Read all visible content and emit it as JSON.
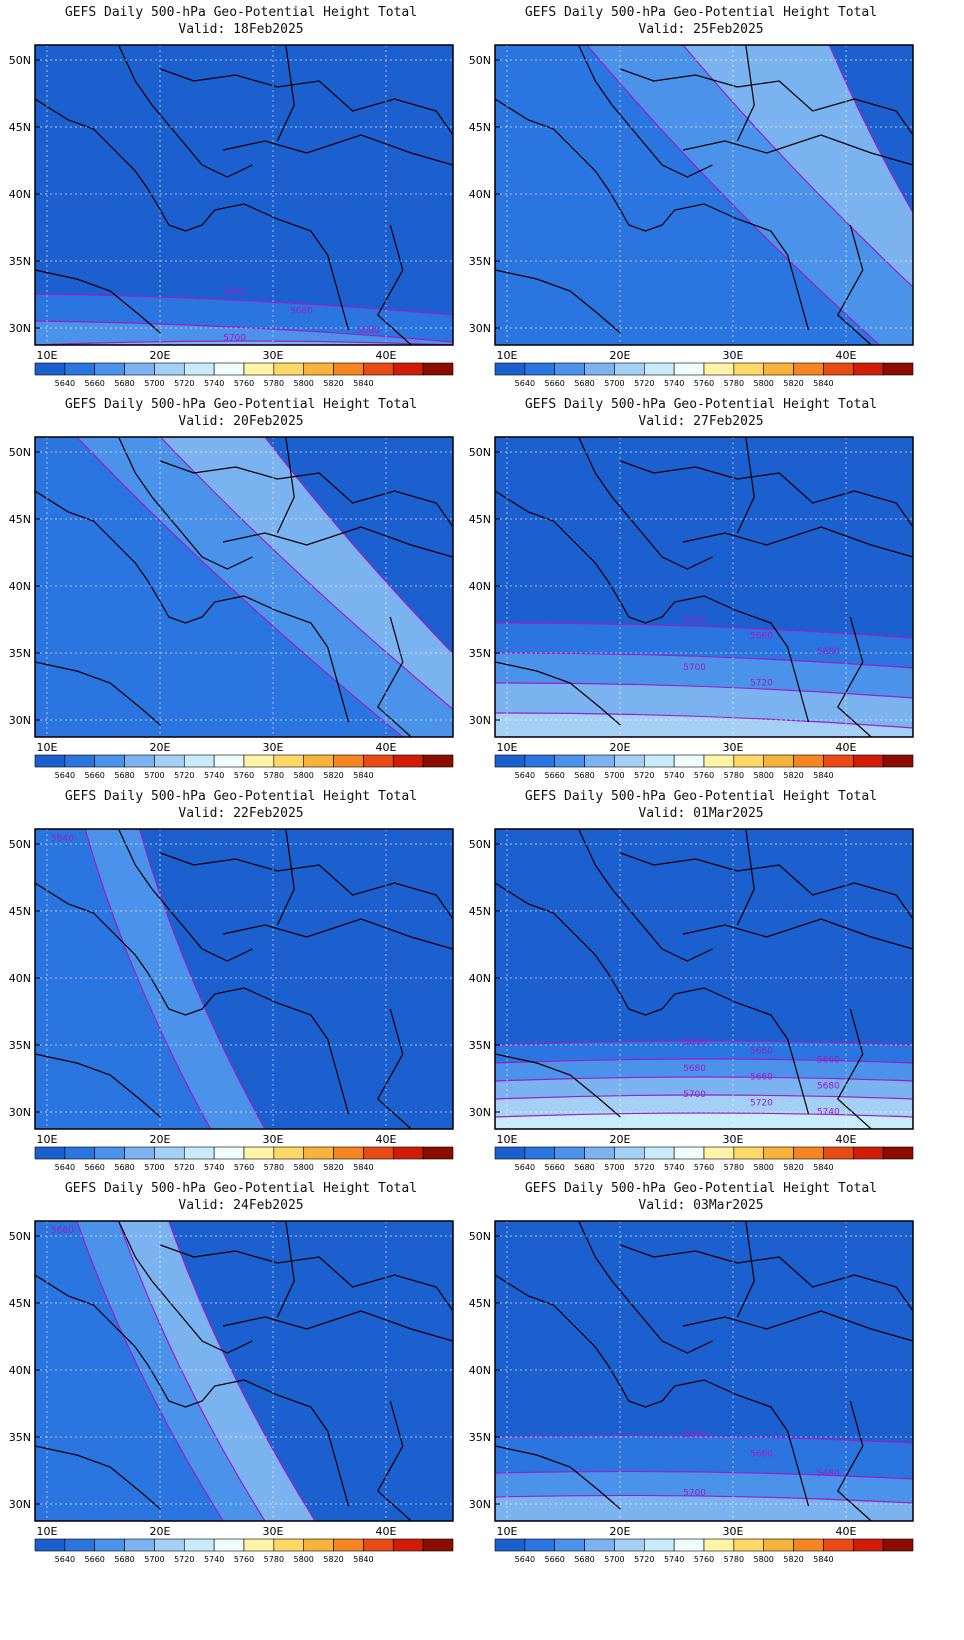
{
  "panels": [
    {
      "title": "GEFS Daily 500-hPa Geo-Potential Height Total",
      "valid": "Valid:  18Feb2025",
      "pattern": "south",
      "tilt": 0.35,
      "bands": [
        0.83,
        0.92,
        1.0
      ],
      "labels": [
        "5640",
        "5660",
        "5680",
        "5700"
      ]
    },
    {
      "title": "GEFS Daily 500-hPa Geo-Potential Height Total",
      "valid": "Valid:  25Feb2025",
      "pattern": "west",
      "tilt": 0.7,
      "bands": [
        0.22,
        0.45,
        0.8
      ],
      "labels": []
    },
    {
      "title": "GEFS Daily 500-hPa Geo-Potential Height Total",
      "valid": "Valid:  20Feb2025",
      "pattern": "west",
      "tilt": 0.78,
      "bands": [
        0.1,
        0.3,
        0.55
      ],
      "labels": []
    },
    {
      "title": "GEFS Daily 500-hPa Geo-Potential Height Total",
      "valid": "Valid:  27Feb2025",
      "pattern": "south",
      "tilt": 0.25,
      "bands": [
        0.62,
        0.72,
        0.82,
        0.92
      ],
      "labels": [
        "5640",
        "5660",
        "5680",
        "5700",
        "5720"
      ]
    },
    {
      "title": "GEFS Daily 500-hPa Geo-Potential Height Total",
      "valid": "Valid:  22Feb2025",
      "pattern": "west",
      "tilt": 0.3,
      "bands": [
        0.12,
        0.25
      ],
      "labels": [
        "5640"
      ]
    },
    {
      "title": "GEFS Daily 500-hPa Geo-Potential Height Total",
      "valid": "Valid:  01Mar2025",
      "pattern": "south",
      "tilt": 0.0,
      "bands": [
        0.72,
        0.78,
        0.84,
        0.9,
        0.96
      ],
      "labels": [
        "5640",
        "5660",
        "5660",
        "5680",
        "5660",
        "5680",
        "5700",
        "5720",
        "5740"
      ]
    },
    {
      "title": "GEFS Daily 500-hPa Geo-Potential Height Total",
      "valid": "Valid:  24Feb2025",
      "pattern": "west",
      "tilt": 0.35,
      "bands": [
        0.1,
        0.2,
        0.32
      ],
      "labels": [
        "5660"
      ]
    },
    {
      "title": "GEFS Daily 500-hPa Geo-Potential Height Total",
      "valid": "Valid:  03Mar2025",
      "pattern": "south",
      "tilt": 0.1,
      "bands": [
        0.72,
        0.84,
        0.92
      ],
      "labels": [
        "5640",
        "5660",
        "5680",
        "5700"
      ]
    }
  ],
  "axes": {
    "y_ticks": [
      "50N",
      "45N",
      "40N",
      "35N",
      "30N"
    ],
    "x_ticks": [
      "10E",
      "20E",
      "30E",
      "40E"
    ]
  },
  "colorbar": {
    "labels": [
      "5640",
      "5660",
      "5680",
      "5700",
      "5720",
      "5740",
      "5760",
      "5780",
      "5800",
      "5820",
      "5840"
    ],
    "colors": [
      "#1c5fcf",
      "#2a75e0",
      "#4a92ea",
      "#7ab3f0",
      "#a4d0f6",
      "#c9ecfb",
      "#edfdfb",
      "#fff4a6",
      "#ffd865",
      "#f7b33c",
      "#f58521",
      "#e84b13",
      "#d01c06",
      "#8b0d02"
    ]
  },
  "colors": {
    "contour": "#9b20c8",
    "coast": "#000000",
    "grid": "#ffffff"
  }
}
